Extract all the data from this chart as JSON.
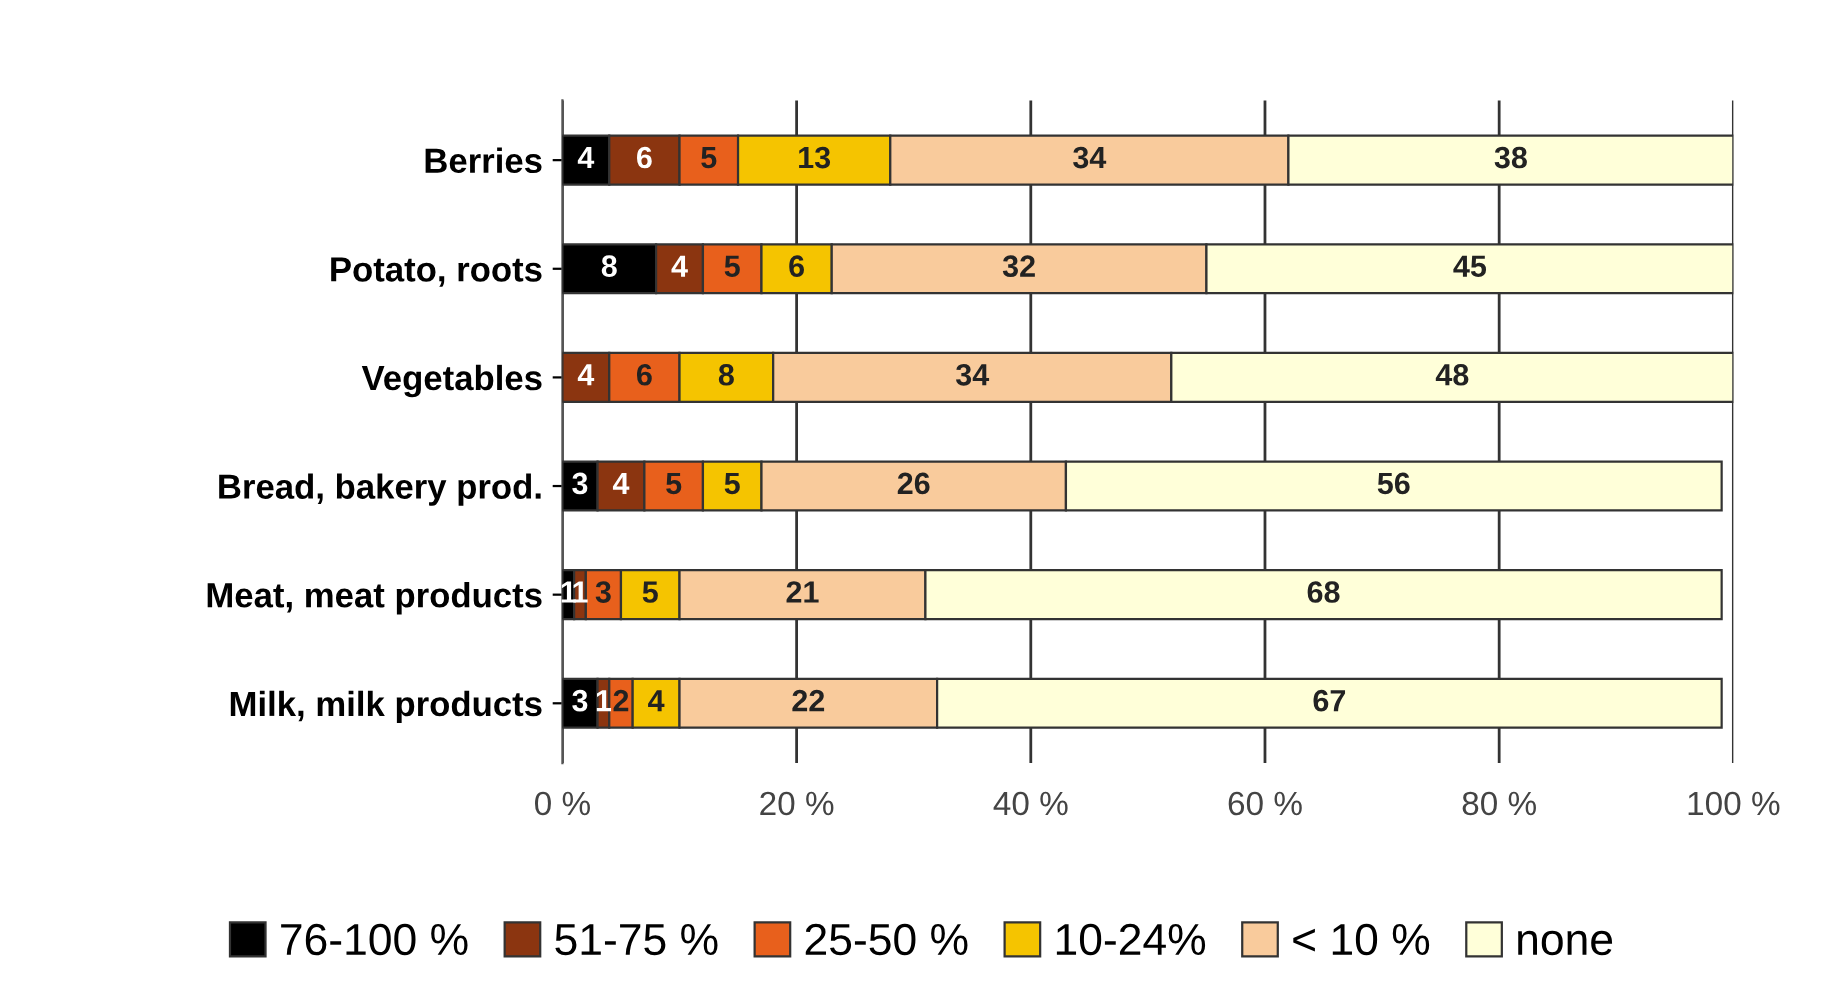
{
  "chart_data": {
    "type": "bar",
    "orientation": "horizontal",
    "stacked": true,
    "categories": [
      "Berries",
      "Potato, roots",
      "Vegetables",
      "Bread, bakery prod.",
      "Meat, meat products",
      "Milk, milk products"
    ],
    "series": [
      {
        "name": "76-100 %",
        "color": "#000000",
        "values": [
          4,
          8,
          0,
          3,
          1,
          3
        ],
        "value_labels": [
          "4",
          "8",
          null,
          "3",
          "1",
          "3"
        ]
      },
      {
        "name": "51-75 %",
        "color": "#8b3510",
        "values": [
          6,
          4,
          4,
          4,
          1,
          1
        ]
      },
      {
        "name": "25-50 %",
        "color": "#e8601c",
        "values": [
          5,
          5,
          6,
          5,
          3,
          2
        ]
      },
      {
        "name": "10-24%",
        "color": "#f5c400",
        "values": [
          13,
          6,
          8,
          5,
          5,
          4
        ]
      },
      {
        "name": "< 10 %",
        "color": "#f9cb9c",
        "values": [
          34,
          32,
          34,
          26,
          21,
          22
        ]
      },
      {
        "name": "none",
        "color": "#ffffd9",
        "values": [
          38,
          45,
          48,
          56,
          68,
          67
        ]
      }
    ],
    "xlim": [
      0,
      100
    ],
    "xticks": [
      {
        "value": 0,
        "label": "0 %"
      },
      {
        "value": 20,
        "label": "20 %"
      },
      {
        "value": 40,
        "label": "40 %"
      },
      {
        "value": 60,
        "label": "60 %"
      },
      {
        "value": 80,
        "label": "80 %"
      },
      {
        "value": 100,
        "label": "100 %"
      }
    ],
    "grid": "x",
    "legend": "bottom",
    "data_labels": true
  }
}
